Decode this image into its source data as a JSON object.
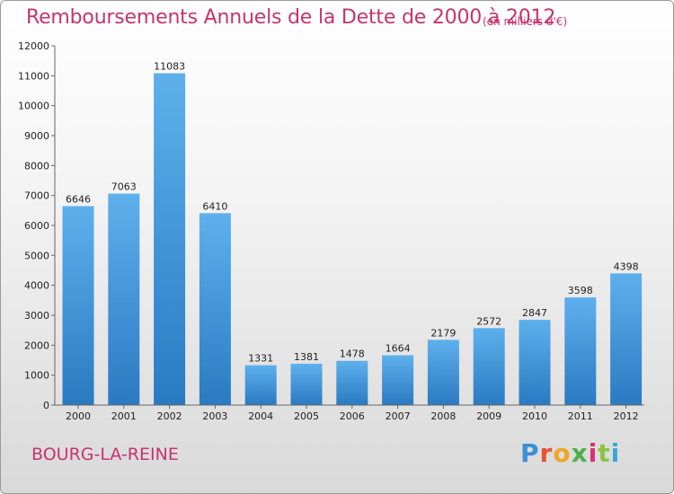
{
  "header": {
    "title": "Remboursements Annuels de la Dette de 2000 à 2012",
    "unit": "(en milliers d'€)"
  },
  "footer": {
    "location": "BOURG-LA-REINE",
    "logo_letters": [
      "P",
      "r",
      "o",
      "x",
      "i",
      "t",
      "i"
    ]
  },
  "colors": {
    "title": "#c8336e",
    "bar_top": "#5eb0ec",
    "bar_bottom": "#2a7ac2"
  },
  "chart_data": {
    "type": "bar",
    "categories": [
      "2000",
      "2001",
      "2002",
      "2003",
      "2004",
      "2005",
      "2006",
      "2007",
      "2008",
      "2009",
      "2010",
      "2011",
      "2012"
    ],
    "values": [
      6646,
      7063,
      11083,
      6410,
      1331,
      1381,
      1478,
      1664,
      2179,
      2572,
      2847,
      3598,
      4398
    ],
    "value_labels": [
      "6646",
      "7063",
      "11083",
      "6410",
      "1331",
      "1381",
      "1478",
      "1664",
      "2179",
      "2572",
      "2847",
      "3598",
      "4398"
    ],
    "ylim": [
      0,
      12000
    ],
    "yticks": [
      0,
      1000,
      2000,
      3000,
      4000,
      5000,
      6000,
      7000,
      8000,
      9000,
      10000,
      11000,
      12000
    ],
    "ytick_labels": [
      "0",
      "1000",
      "2000",
      "3000",
      "4000",
      "5000",
      "6000",
      "7000",
      "8000",
      "9000",
      "10000",
      "11000",
      "12000"
    ],
    "grid": false
  }
}
